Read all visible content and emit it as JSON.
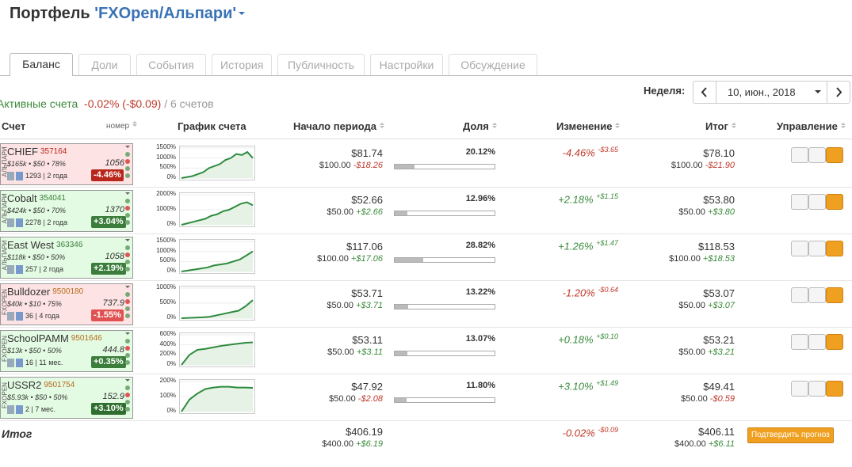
{
  "header": {
    "title": "Портфель",
    "portfolio": "'FXOpen/Альпари'"
  },
  "tabs": [
    "Баланс",
    "Доли",
    "События",
    "История",
    "Публичность",
    "Настройки",
    "Обсуждение"
  ],
  "week": {
    "label": "Неделя:",
    "value": "10, июн., 2018"
  },
  "summary": {
    "title": "Активные счета",
    "change": "-0.02% (-$0.09)",
    "count": "/ 6 счетов"
  },
  "columns": {
    "account": "Счет",
    "number": "номер",
    "chart": "График счета",
    "start": "Начало периода",
    "share": "Доля",
    "change": "Изменение",
    "total": "Итог",
    "manage": "Управление"
  },
  "rows": [
    {
      "broker": "АЛЬПАРИ",
      "name": "CHIEF",
      "number": "357164",
      "stats": "$165k • $50 • 78%",
      "value": "1056",
      "comments": "1293 | 2 года",
      "badge": "-4.46%",
      "card_color": "#fde3e3",
      "badge_color": "#b8261c",
      "number_color": "#b8261c",
      "chart": {
        "yticks": [
          {
            "value": 1500,
            "label": "1500%"
          },
          {
            "value": 1000,
            "label": "1000%"
          },
          {
            "value": 500,
            "label": "500%"
          },
          {
            "value": 0,
            "label": "0%"
          }
        ],
        "values": [
          0,
          50,
          100,
          200,
          300,
          500,
          600,
          700,
          900,
          1000,
          1200,
          1150,
          1300,
          1000
        ]
      },
      "start": "$81.74",
      "start_sub": "$100.00",
      "start_delta": "-$18.26",
      "share": {
        "value": 20.12,
        "label": "20.12%"
      },
      "change": "-4.46%",
      "change_delta": "-$3.65",
      "total": "$78.10",
      "total_sub": "$100.00",
      "total_delta": "-$21.90"
    },
    {
      "broker": "АЛЬПАРИ",
      "name": "Cobalt",
      "number": "354041",
      "stats": "$424k • $50 • 70%",
      "value": "1370",
      "comments": "2278 | 2 года",
      "badge": "+3.04%",
      "card_color": "#e3fbe3",
      "badge_color": "#3b7d3b",
      "number_color": "#3b7d3b",
      "chart": {
        "yticks": [
          {
            "value": 2000,
            "label": "2000%"
          },
          {
            "value": 1000,
            "label": "1000%"
          },
          {
            "value": 0,
            "label": "0%"
          }
        ],
        "values": [
          0,
          100,
          200,
          300,
          400,
          600,
          700,
          900,
          1000,
          1200,
          1400,
          1500,
          1300
        ]
      },
      "start": "$52.66",
      "start_sub": "$50.00",
      "start_delta": "+$2.66",
      "share": {
        "value": 12.96,
        "label": "12.96%"
      },
      "change": "+2.18%",
      "change_delta": "+$1.15",
      "total": "$53.80",
      "total_sub": "$50.00",
      "total_delta": "+$3.80"
    },
    {
      "broker": "АЛЬПАРИ",
      "name": "East West",
      "number": "363346",
      "stats": "$118k • $50 • 50%",
      "value": "1058",
      "comments": "257 | 2 года",
      "badge": "+2.19%",
      "card_color": "#e3fbe3",
      "badge_color": "#3b7d3b",
      "number_color": "#3b7d3b",
      "chart": {
        "yticks": [
          {
            "value": 1500,
            "label": "1500%"
          },
          {
            "value": 1000,
            "label": "1000%"
          },
          {
            "value": 500,
            "label": "500%"
          },
          {
            "value": 0,
            "label": "0%"
          }
        ],
        "values": [
          0,
          50,
          100,
          150,
          200,
          300,
          350,
          400,
          500,
          600,
          800,
          1000
        ]
      },
      "start": "$117.06",
      "start_sub": "$100.00",
      "start_delta": "+$17.06",
      "share": {
        "value": 28.82,
        "label": "28.82%"
      },
      "change": "+1.26%",
      "change_delta": "+$1.47",
      "total": "$118.53",
      "total_sub": "$100.00",
      "total_delta": "+$18.53"
    },
    {
      "broker": "FXOPEN",
      "name": "Bulldozer",
      "number": "9500180",
      "stats": "$40k • $10 • 75%",
      "value": "737.9",
      "comments": "36 | 4 года",
      "badge": "-1.55%",
      "card_color": "#fde3e3",
      "badge_color": "#e05252",
      "number_color": "#b86a1c",
      "chart": {
        "yticks": [
          {
            "value": 1000,
            "label": "1000%"
          },
          {
            "value": 500,
            "label": "500%"
          },
          {
            "value": 0,
            "label": "0%"
          }
        ],
        "values": [
          0,
          10,
          20,
          30,
          50,
          100,
          150,
          200,
          250,
          400,
          600
        ]
      },
      "start": "$53.71",
      "start_sub": "$50.00",
      "start_delta": "+$3.71",
      "share": {
        "value": 13.22,
        "label": "13.22%"
      },
      "change": "-1.20%",
      "change_delta": "-$0.64",
      "total": "$53.07",
      "total_sub": "$50.00",
      "total_delta": "+$3.07"
    },
    {
      "broker": "FXOPEN",
      "name": "SchoolPAMM",
      "number": "9501646",
      "stats": "$13k • $50 • 50%",
      "value": "444.8",
      "comments": "16 | 11 мес.",
      "badge": "+0.35%",
      "card_color": "#e3fbe3",
      "badge_color": "#3b7d3b",
      "number_color": "#b86a1c",
      "chart": {
        "yticks": [
          {
            "value": 600,
            "label": "600%"
          },
          {
            "value": 400,
            "label": "400%"
          },
          {
            "value": 200,
            "label": "200%"
          },
          {
            "value": 0,
            "label": "0%"
          }
        ],
        "values": [
          0,
          200,
          300,
          320,
          350,
          380,
          400,
          420,
          440,
          450
        ]
      },
      "start": "$53.11",
      "start_sub": "$50.00",
      "start_delta": "+$3.11",
      "share": {
        "value": 13.07,
        "label": "13.07%"
      },
      "change": "+0.18%",
      "change_delta": "+$0.10",
      "total": "$53.21",
      "total_sub": "$50.00",
      "total_delta": "+$3.21"
    },
    {
      "broker": "FXOPEN",
      "name": "USSR2",
      "number": "9501754",
      "stats": "$5.93k • $50 • 50%",
      "value": "152.9",
      "comments": "2 | 7 мес.",
      "badge": "+3.10%",
      "card_color": "#e3fbe3",
      "badge_color": "#2f6e2f",
      "number_color": "#b86a1c",
      "chart": {
        "yticks": [
          {
            "value": 200,
            "label": "200%"
          },
          {
            "value": 100,
            "label": "100%"
          },
          {
            "value": 0,
            "label": "0%"
          }
        ],
        "values": [
          0,
          80,
          120,
          150,
          160,
          165,
          165,
          160,
          160,
          158
        ]
      },
      "start": "$47.92",
      "start_sub": "$50.00",
      "start_delta": "-$2.08",
      "share": {
        "value": 11.8,
        "label": "11.80%"
      },
      "change": "+3.10%",
      "change_delta": "+$1.49",
      "total": "$49.41",
      "total_sub": "$50.00",
      "total_delta": "-$0.59"
    }
  ],
  "footer": {
    "label": "Итог",
    "start": "$406.19",
    "start_sub": "$400.00",
    "start_delta": "+$6.19",
    "change": "-0.02%",
    "change_delta": "-$0.09",
    "total": "$406.11",
    "total_sub": "$400.00",
    "total_delta": "+$6.11",
    "button": "Подтвердить прогноз"
  }
}
